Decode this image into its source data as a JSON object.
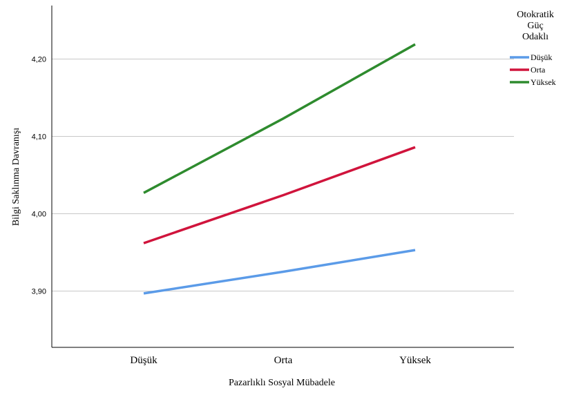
{
  "chart_data": {
    "type": "line",
    "categories": [
      "Düşük",
      "Orta",
      "Yüksek"
    ],
    "xlabel": "Pazarlıklı Sosyal Mübadele",
    "ylabel": "Bilgi Saklınma Davranışı",
    "ylim": [
      3.83,
      4.27
    ],
    "yticks": [
      3.9,
      4.0,
      4.1,
      4.2
    ],
    "ytick_labels": [
      "3,90",
      "4,00",
      "4,10",
      "4,20"
    ],
    "grid": "horizontal",
    "legend": {
      "title_lines": [
        "Otokratik",
        "Güç",
        "Odaklı"
      ],
      "placement": "top-right outside"
    },
    "series": [
      {
        "name": "Düşük",
        "color": "#5b9be8",
        "values": [
          3.897,
          3.925,
          3.953
        ]
      },
      {
        "name": "Orta",
        "color": "#d0143c",
        "values": [
          3.962,
          4.024,
          4.086
        ]
      },
      {
        "name": "Yüksek",
        "color": "#2e8b2e",
        "values": [
          4.027,
          4.123,
          4.219
        ]
      }
    ]
  }
}
